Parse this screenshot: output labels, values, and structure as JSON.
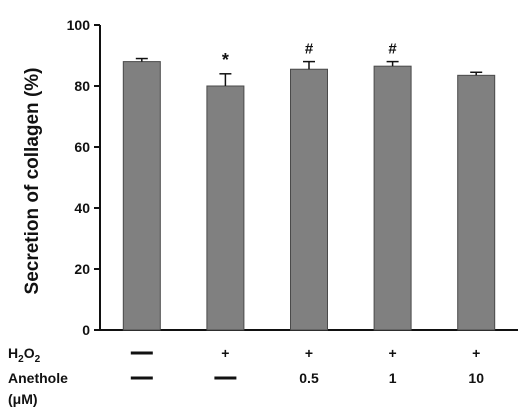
{
  "chart_data": {
    "type": "bar",
    "ylabel": "Secretion of collagen (%)",
    "ylim": [
      0,
      100
    ],
    "yticks": [
      0,
      20,
      40,
      60,
      80,
      100
    ],
    "grid": false,
    "legend": "none",
    "bar_color": "#808080",
    "values": [
      88,
      80,
      85.5,
      86.5,
      83.5
    ],
    "errors": [
      1,
      4,
      2.5,
      1.5,
      1
    ],
    "annotations": [
      "",
      "*",
      "#",
      "#",
      ""
    ],
    "conditions": {
      "h2o2_label": "H",
      "h2o2_sub1": "2",
      "h2o2_mid": "O",
      "h2o2_sub2": "2",
      "h2o2": [
        "—",
        "+",
        "+",
        "+",
        "+"
      ],
      "anethole_label": "Anethole",
      "anethole_unit": "(μM)",
      "anethole": [
        "—",
        "—",
        "0.5",
        "1",
        "10"
      ]
    }
  }
}
